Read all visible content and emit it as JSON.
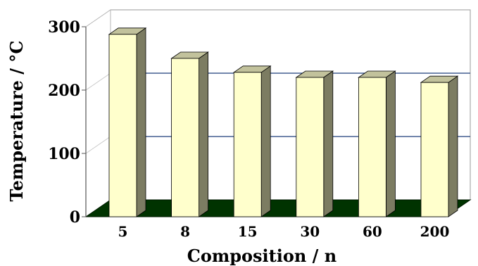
{
  "chart_data": {
    "type": "bar",
    "categories": [
      "5",
      "8",
      "15",
      "30",
      "60",
      "200"
    ],
    "values": [
      288,
      250,
      228,
      220,
      220,
      212
    ],
    "xlabel": "Composition / n",
    "ylabel": "Temperature / °C",
    "ylim": [
      0,
      300
    ],
    "yticks": [
      "0",
      "100",
      "200",
      "300"
    ],
    "grid": true,
    "style": "3d",
    "colors": {
      "bar_front": "#ffffcc",
      "bar_side": "#7c7c62",
      "bar_top": "#c2c29c",
      "floor": "#003300",
      "gridline": "#1f3f7a"
    }
  }
}
